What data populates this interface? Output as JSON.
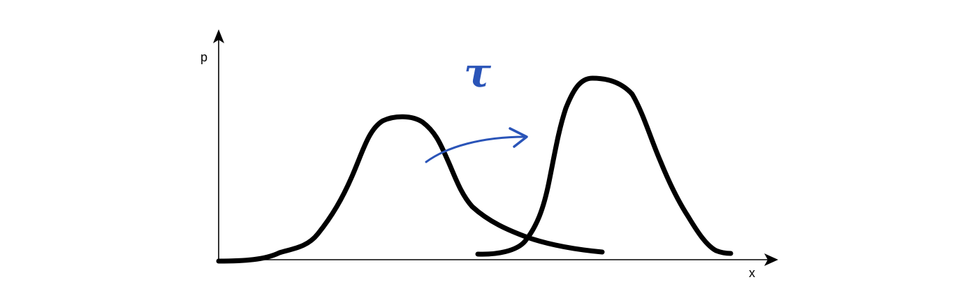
{
  "diagram": {
    "axes": {
      "y_label": "p",
      "x_label": "x"
    },
    "curves": [
      {
        "name": "original-distribution",
        "color": "#000000"
      },
      {
        "name": "shifted-distribution",
        "color": "#000000"
      }
    ],
    "shift": {
      "label": "τ",
      "color": "#2a54b8",
      "arrow_icon": "curved-arrow-icon"
    }
  }
}
